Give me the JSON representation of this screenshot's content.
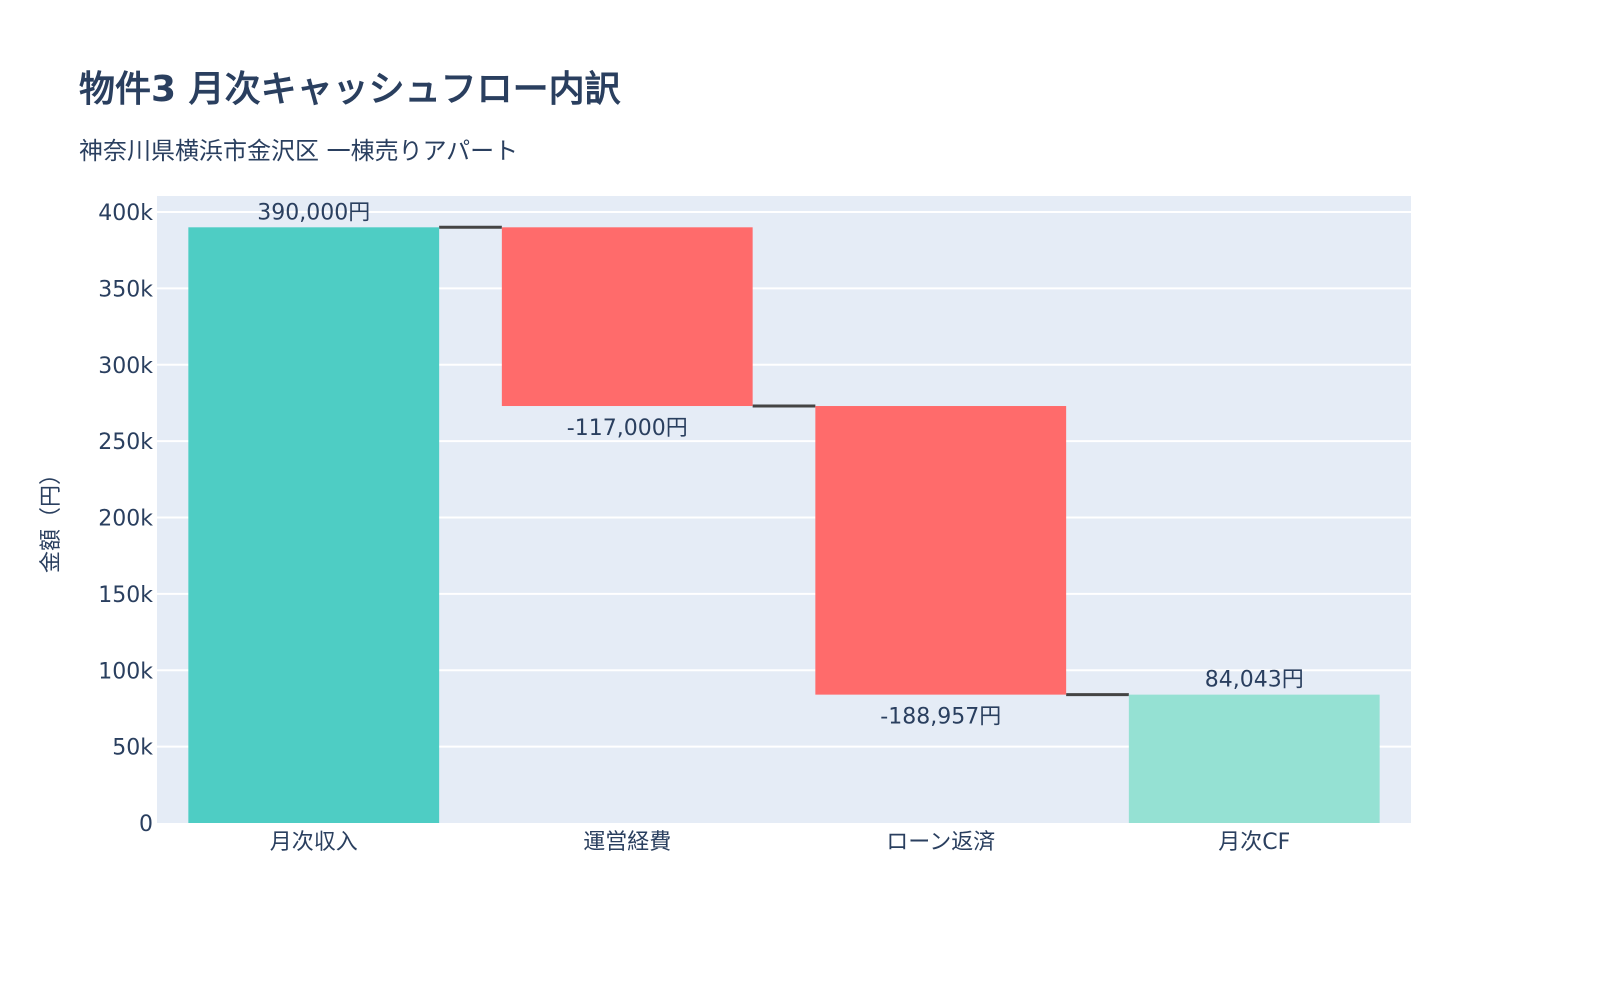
{
  "chart_data": {
    "type": "waterfall",
    "title": "物件3 月次キャッシュフロー内訳",
    "subtitle": "神奈川県横浜市金沢区 一棟売りアパート",
    "xlabel": "",
    "ylabel": "金額（円）",
    "categories": [
      "月次収入",
      "運営経費",
      "ローン返済",
      "月次CF"
    ],
    "measures": [
      "relative",
      "relative",
      "relative",
      "total"
    ],
    "values": [
      390000,
      -117000,
      -188957,
      84043
    ],
    "data_labels": [
      "390,000円",
      "-117,000円",
      "-188,957円",
      "84,043円"
    ],
    "ylim": [
      0,
      410500
    ],
    "yticks": [
      0,
      50000,
      100000,
      150000,
      200000,
      250000,
      300000,
      350000,
      400000
    ],
    "ytick_labels": [
      "0",
      "50k",
      "100k",
      "150k",
      "200k",
      "250k",
      "300k",
      "350k",
      "400k"
    ],
    "grid": true,
    "legend": "none",
    "colors": {
      "increasing": "#4ECDC4",
      "decreasing": "#FF6B6B",
      "total": "#95E1D3",
      "connector": "#444444",
      "plot_bg": "#E5ECF6"
    }
  }
}
